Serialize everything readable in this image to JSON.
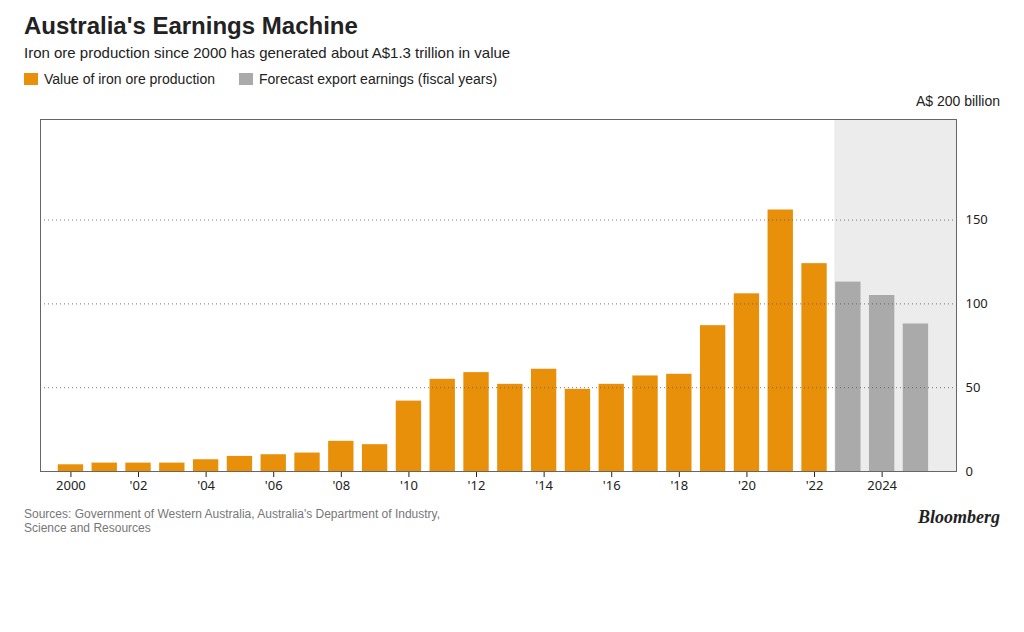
{
  "chart_data": {
    "type": "bar",
    "title": "Australia's Earnings Machine",
    "subtitle": "Iron ore production since 2000 has generated about A$1.3 trillion in value",
    "ylabel": "A$ 200 billion",
    "source": "Sources: Government of Western Australia, Australia's Department of Industry,\nScience and Resources",
    "credit": "Bloomberg",
    "x": [
      2000,
      2001,
      2002,
      2003,
      2004,
      2005,
      2006,
      2007,
      2008,
      2009,
      2010,
      2011,
      2012,
      2013,
      2014,
      2015,
      2016,
      2017,
      2018,
      2019,
      2020,
      2021,
      2022,
      2023,
      2024,
      2025
    ],
    "series": [
      {
        "name": "Value of iron ore production",
        "color": "#E8900A",
        "values": [
          4,
          5,
          5,
          5,
          7,
          9,
          10,
          11,
          18,
          16,
          42,
          55,
          59,
          52,
          61,
          49,
          52,
          57,
          58,
          87,
          106,
          156,
          124,
          null,
          null,
          null
        ]
      },
      {
        "name": "Forecast export earnings (fiscal years)",
        "color": "#AAAAAA",
        "values": [
          null,
          null,
          null,
          null,
          null,
          null,
          null,
          null,
          null,
          null,
          null,
          null,
          null,
          null,
          null,
          null,
          null,
          null,
          null,
          null,
          null,
          null,
          null,
          113,
          105,
          88
        ]
      }
    ],
    "forecast_region": [
      2022.6,
      2026.2
    ],
    "xlim": [
      1999.1,
      2026.2
    ],
    "xticks": [
      2000,
      {
        "value": 2002,
        "label": "'02"
      },
      {
        "value": 2004,
        "label": "'04"
      },
      {
        "value": 2006,
        "label": "'06"
      },
      {
        "value": 2008,
        "label": "'08"
      },
      {
        "value": 2010,
        "label": "'10"
      },
      {
        "value": 2012,
        "label": "'12"
      },
      {
        "value": 2014,
        "label": "'14"
      },
      {
        "value": 2016,
        "label": "'16"
      },
      {
        "value": 2018,
        "label": "'18"
      },
      {
        "value": 2020,
        "label": "'20"
      },
      {
        "value": 2022,
        "label": "'22"
      },
      2024
    ],
    "ylim": [
      0,
      210
    ],
    "yticks": [
      0,
      50,
      100,
      150
    ],
    "grid": true,
    "legend": "upper left"
  }
}
